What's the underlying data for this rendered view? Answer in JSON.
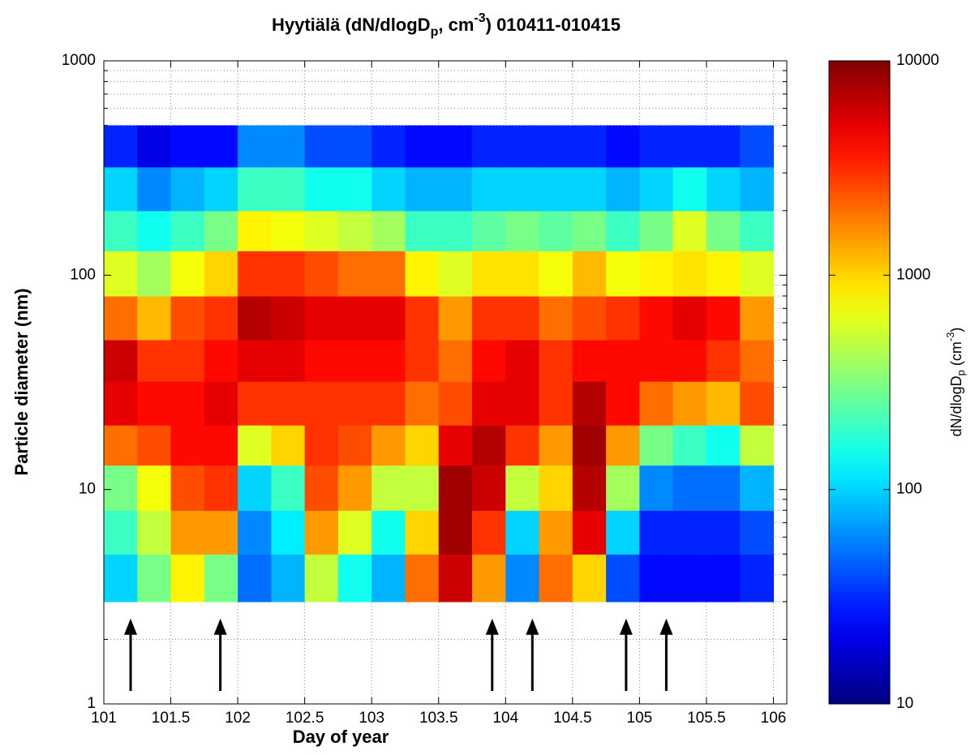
{
  "chart_data": {
    "type": "heatmap",
    "title": [
      "Hyytiälä (dN/dlogD",
      "p",
      ", cm",
      "-3",
      ") 010411-010415"
    ],
    "xlabel": "Day of year",
    "ylabel": "Particle diameter (nm)",
    "colorbar_label": [
      "dN/dlogD",
      "p",
      " (cm",
      "-3",
      ")"
    ],
    "xlim": [
      101,
      106.1
    ],
    "xticks": [
      101,
      101.5,
      102,
      102.5,
      103,
      103.5,
      104,
      104.5,
      105,
      105.5,
      106
    ],
    "ylim": [
      1,
      1000
    ],
    "yticks": [
      1,
      10,
      100,
      1000
    ],
    "yscale": "log",
    "grid": true,
    "minor_grid": true,
    "colormap": "jet",
    "clim": [
      10,
      10000
    ],
    "cticks": [
      10,
      100,
      1000,
      10000
    ],
    "cscale": "log",
    "x_edges": [
      101,
      101.25,
      101.5,
      101.75,
      102,
      102.25,
      102.5,
      102.75,
      103,
      103.25,
      103.5,
      103.75,
      104,
      104.25,
      104.5,
      104.75,
      105,
      105.25,
      105.5,
      105.75,
      106
    ],
    "y_edges": [
      3,
      5,
      8,
      13,
      20,
      32,
      50,
      80,
      130,
      200,
      320,
      500
    ],
    "z": [
      [
        100,
        300,
        800,
        300,
        50,
        80,
        500,
        150,
        80,
        2000,
        6000,
        1500,
        60,
        2000,
        1000,
        40,
        25,
        25,
        25,
        30
      ],
      [
        200,
        500,
        1500,
        1500,
        60,
        120,
        1500,
        600,
        150,
        1000,
        8000,
        3000,
        100,
        1500,
        5000,
        100,
        30,
        30,
        30,
        40
      ],
      [
        300,
        700,
        2500,
        3000,
        100,
        200,
        2500,
        1500,
        500,
        500,
        8000,
        6000,
        500,
        1000,
        7000,
        400,
        60,
        50,
        50,
        80
      ],
      [
        2000,
        2500,
        4000,
        4000,
        600,
        1000,
        3000,
        2500,
        1500,
        1000,
        5000,
        7000,
        3000,
        1500,
        8000,
        1500,
        300,
        200,
        150,
        500
      ],
      [
        5000,
        4000,
        4000,
        5000,
        3000,
        3000,
        3000,
        3000,
        3000,
        2000,
        2500,
        5000,
        5000,
        3000,
        7000,
        4000,
        2000,
        1500,
        1200,
        2500
      ],
      [
        6000,
        3000,
        3000,
        4000,
        5000,
        5000,
        4000,
        4000,
        4000,
        3000,
        2000,
        4000,
        5000,
        3000,
        4000,
        4000,
        4000,
        4000,
        3000,
        2000
      ],
      [
        2000,
        1200,
        2500,
        3000,
        7000,
        6000,
        5000,
        5000,
        5000,
        3000,
        1500,
        3000,
        3000,
        2000,
        2500,
        3000,
        4000,
        5000,
        4000,
        1500
      ],
      [
        600,
        400,
        700,
        1000,
        3000,
        3000,
        2500,
        2000,
        2000,
        800,
        600,
        900,
        900,
        700,
        1200,
        700,
        800,
        900,
        800,
        600
      ],
      [
        200,
        150,
        200,
        300,
        800,
        700,
        600,
        500,
        400,
        200,
        200,
        250,
        300,
        250,
        300,
        200,
        300,
        600,
        300,
        200
      ],
      [
        100,
        60,
        80,
        100,
        200,
        200,
        150,
        150,
        100,
        80,
        80,
        100,
        100,
        100,
        100,
        80,
        100,
        150,
        100,
        80
      ],
      [
        30,
        20,
        25,
        25,
        60,
        60,
        40,
        40,
        30,
        25,
        25,
        30,
        30,
        30,
        30,
        25,
        30,
        30,
        30,
        40
      ]
    ],
    "arrows": {
      "x": [
        101.2,
        101.87,
        103.9,
        104.2,
        104.9,
        105.2
      ],
      "tip": 2.5,
      "tail": 1.15
    }
  }
}
